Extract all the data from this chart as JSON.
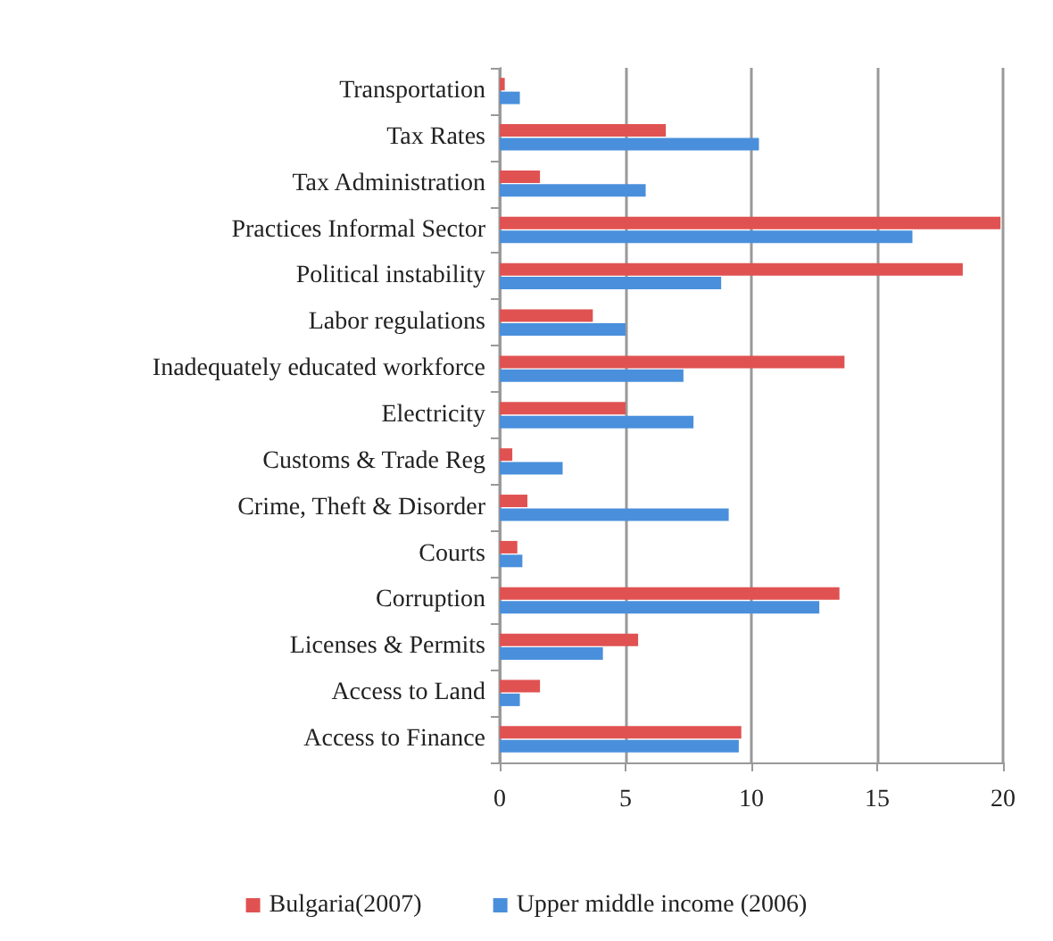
{
  "chart_data": {
    "type": "bar",
    "orientation": "horizontal",
    "categories": [
      "Transportation",
      "Tax Rates",
      "Tax Administration",
      "Practices Informal Sector",
      "Political instability",
      "Labor regulations",
      "Inadequately educated workforce",
      "Electricity",
      "Customs & Trade Reg",
      "Crime, Theft & Disorder",
      "Courts",
      "Corruption",
      "Licenses & Permits",
      "Access to Land",
      "Access to Finance"
    ],
    "series": [
      {
        "name": "Bulgaria(2007)",
        "color": "#e05252",
        "values": [
          0.2,
          6.6,
          1.6,
          19.9,
          18.4,
          3.7,
          13.7,
          5.0,
          0.5,
          1.1,
          0.7,
          13.5,
          5.5,
          1.6,
          9.6
        ]
      },
      {
        "name": "Upper middle income (2006)",
        "color": "#4a8fdc",
        "values": [
          0.8,
          10.3,
          5.8,
          16.4,
          8.8,
          5.0,
          7.3,
          7.7,
          2.5,
          9.1,
          0.9,
          12.7,
          4.1,
          0.8,
          9.5
        ]
      }
    ],
    "xlim": [
      0,
      20
    ],
    "xticks": [
      0,
      5,
      10,
      15,
      20
    ],
    "grid": "x",
    "legend": "bottom"
  }
}
